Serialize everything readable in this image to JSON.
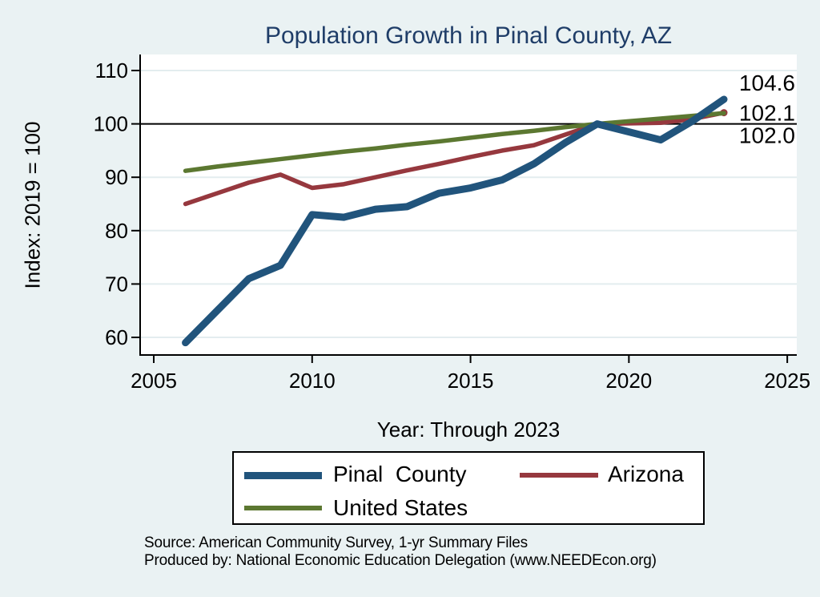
{
  "title": "Population Growth in Pinal County, AZ",
  "y_axis_title": "Index: 2019 = 100",
  "x_axis_title": "Year: Through 2023",
  "source_lines": [
    "Source: American Community Survey, 1-yr Summary Files",
    "Produced by: National Economic Education Delegation (www.NEEDEcon.org)"
  ],
  "legend": {
    "items": [
      {
        "label": "Pinal  County",
        "color": "#21547C"
      },
      {
        "label": "Arizona",
        "color": "#96383E"
      },
      {
        "label": "United States",
        "color": "#5C7831"
      }
    ]
  },
  "colors": {
    "background": "#EAF2F3",
    "plot_background": "#FFFFFF",
    "title": "#1F3D68",
    "gridline": "#E3EDEF",
    "axis": "#000000",
    "reference_line": "#000000"
  },
  "chart_data": {
    "type": "line",
    "title": "Population Growth in Pinal County, AZ",
    "xlabel": "Year: Through 2023",
    "ylabel": "Index: 2019 = 100",
    "x_ticks": [
      2005,
      2010,
      2015,
      2020,
      2025
    ],
    "y_ticks": [
      60,
      70,
      80,
      90,
      100,
      110
    ],
    "xlim": [
      2004.57,
      2025.3
    ],
    "ylim": [
      56.7,
      113.0
    ],
    "grid": true,
    "reference_line_y": 100,
    "legend_position": "below",
    "x": [
      2006,
      2007,
      2008,
      2009,
      2010,
      2011,
      2012,
      2013,
      2014,
      2015,
      2016,
      2017,
      2018,
      2019,
      2021,
      2022,
      2023
    ],
    "series": [
      {
        "name": "Pinal  County",
        "color": "#21547C",
        "width": 9,
        "zorder": 3,
        "end_label": "104.6",
        "end_marker": false,
        "values": [
          59,
          65,
          71,
          73.5,
          83,
          82.5,
          84,
          84.5,
          87,
          88,
          89.5,
          92.5,
          96.5,
          100,
          97,
          100.5,
          104.6
        ]
      },
      {
        "name": "Arizona",
        "color": "#96383E",
        "width": 5.5,
        "zorder": 1,
        "end_label": "102.1",
        "end_marker": true,
        "values": [
          85,
          87,
          89,
          90.5,
          88,
          88.7,
          90,
          91.3,
          92.5,
          93.8,
          95,
          96,
          98,
          100,
          100.2,
          100.9,
          102.1
        ]
      },
      {
        "name": "United States",
        "color": "#5C7831",
        "width": 5.5,
        "zorder": 2,
        "end_label": "102.0",
        "end_marker": false,
        "values": [
          91.2,
          92,
          92.7,
          93.4,
          94.1,
          94.8,
          95.4,
          96.1,
          96.7,
          97.4,
          98.1,
          98.7,
          99.4,
          100,
          101,
          101.5,
          102
        ]
      }
    ]
  }
}
